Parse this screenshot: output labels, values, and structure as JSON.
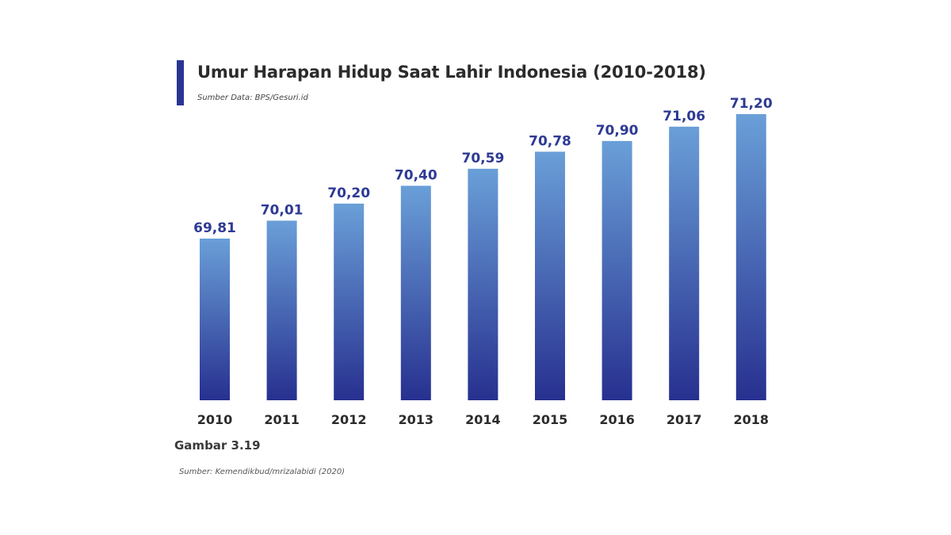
{
  "chart_data": {
    "type": "bar",
    "title": "Umur Harapan Hidup Saat Lahir Indonesia (2010-2018)",
    "subtitle": "Sumber Data: BPS/Gesuri.id",
    "categories": [
      "2010",
      "2011",
      "2012",
      "2013",
      "2014",
      "2015",
      "2016",
      "2017",
      "2018"
    ],
    "values": [
      69.81,
      70.01,
      70.2,
      70.4,
      70.59,
      70.78,
      70.9,
      71.06,
      71.2
    ],
    "value_labels": [
      "69,81",
      "70,01",
      "70,20",
      "70,40",
      "70,59",
      "70,78",
      "70,90",
      "71,06",
      "71,20"
    ],
    "xlabel": "",
    "ylabel": "",
    "grid": false,
    "legend": "none",
    "colors": {
      "bar_top": "#6a9fd8",
      "bar_bottom": "#27308f",
      "value_label": "#2e3a93",
      "tick_label": "#2b2b2b",
      "accent": "#2a3592"
    }
  },
  "figure_label": "Gambar 3.19",
  "credit": "Sumber: Kemendikbud/mrizalabidi (2020)"
}
